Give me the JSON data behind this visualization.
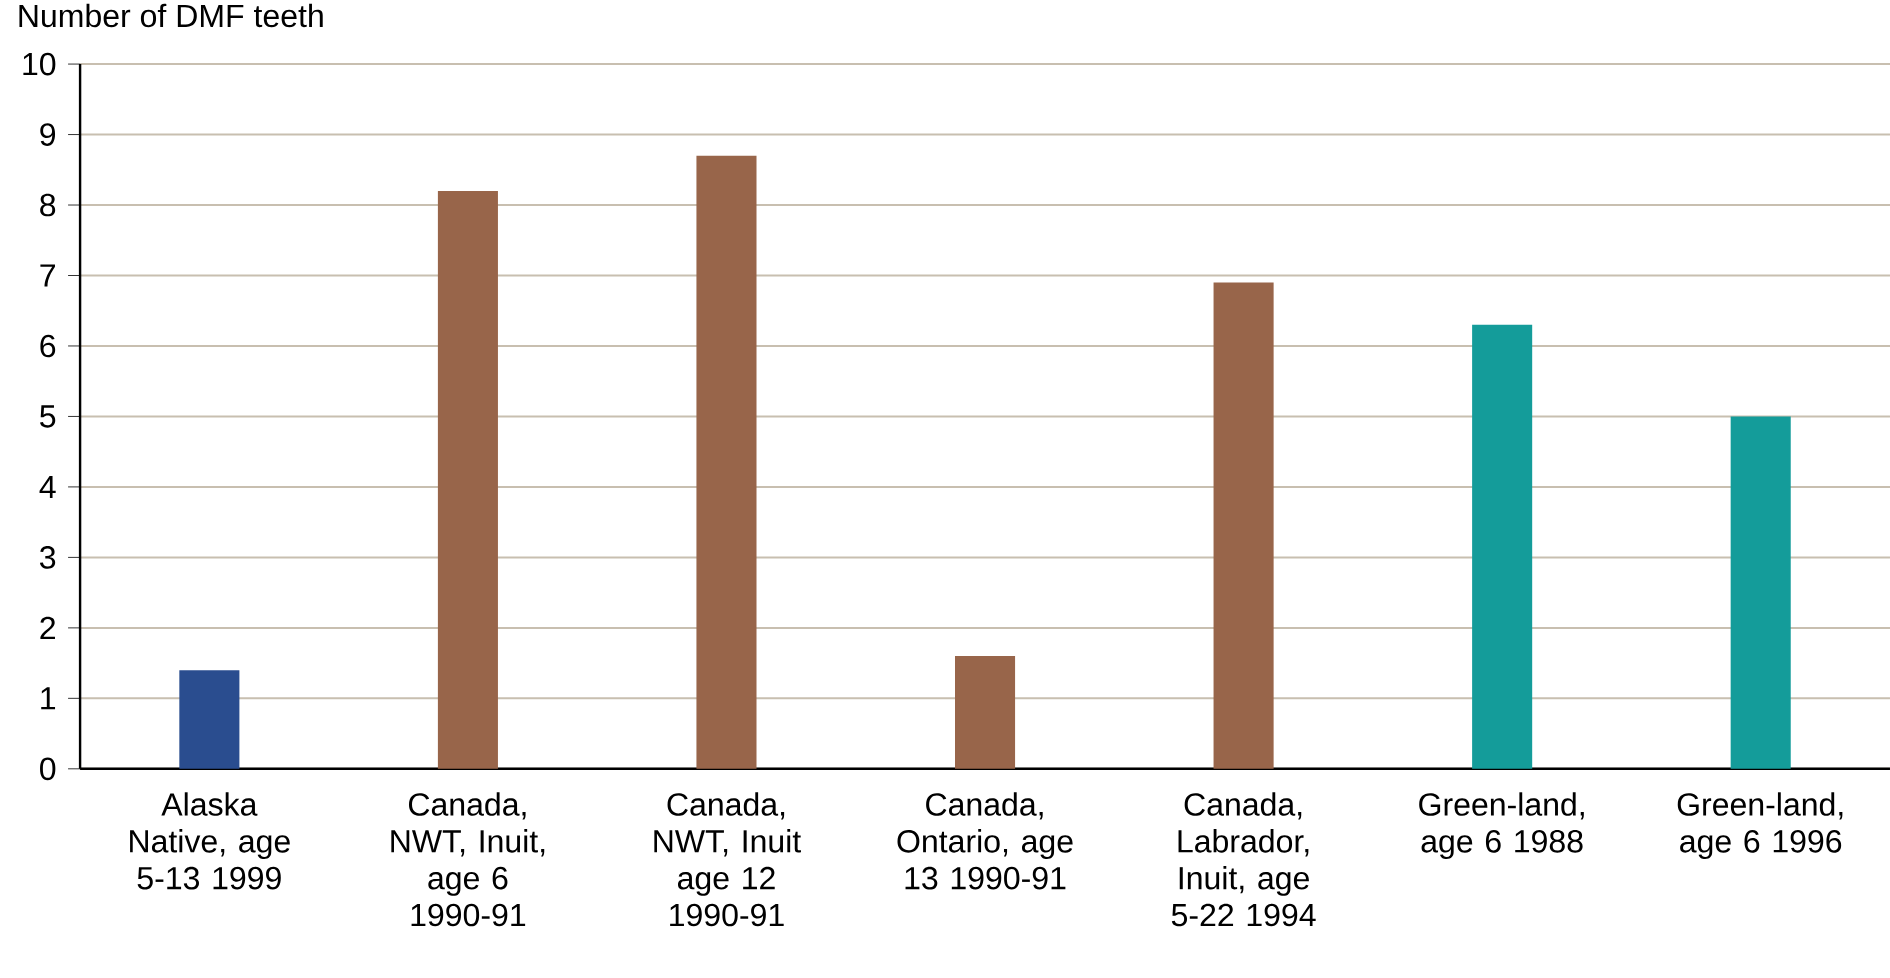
{
  "chart_data": {
    "type": "bar",
    "ylabel": "Number of DMF teeth",
    "categories": [
      "Alaska Native, age 5-13 1999",
      "Canada, NWT, Inuit, age 6 1990-91",
      "Canada, NWT, Inuit age 12 1990-91",
      "Canada, Ontario, age 13 1990-91",
      "Canada, Labrador, Inuit, age 5-22 1994",
      "Green-land, age 6 1988",
      "Green-land, age 6 1996"
    ],
    "values": [
      1.4,
      8.2,
      8.7,
      1.6,
      6.9,
      6.3,
      5.0
    ],
    "colors": [
      "#2a4d8f",
      "#98654a",
      "#98654a",
      "#98654a",
      "#98654a",
      "#149c9a",
      "#149c9a"
    ],
    "ylim": [
      0,
      10
    ],
    "yticks": [
      0,
      1,
      2,
      3,
      4,
      5,
      6,
      7,
      8,
      9,
      10
    ],
    "grid": "y"
  }
}
